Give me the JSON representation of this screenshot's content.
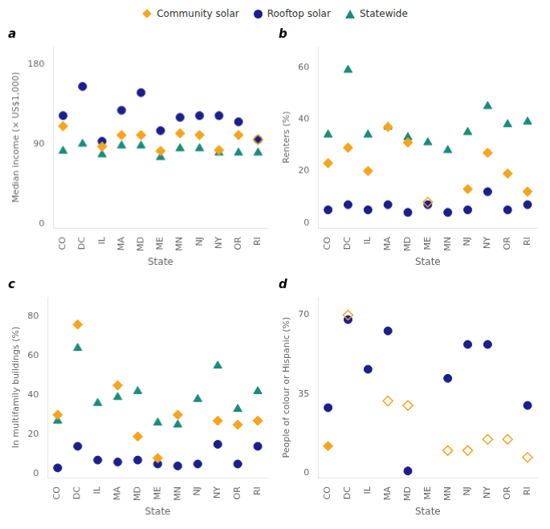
{
  "chart_data": [
    {
      "type": "scatter",
      "title": "a",
      "xlabel": "State",
      "ylabel": "Median income (× US$1,000)",
      "categories": [
        "CO",
        "DC",
        "IL",
        "MA",
        "MD",
        "ME",
        "MN",
        "NJ",
        "NY",
        "OR",
        "RI"
      ],
      "ylim": [
        -5,
        200
      ],
      "yticks": [
        0,
        90,
        180
      ],
      "grid": false,
      "legend": "top",
      "series": [
        {
          "name": "Community solar",
          "color": "#F5A41F",
          "marker": "diamond",
          "values": [
            110,
            null,
            87,
            100,
            100,
            82,
            102,
            100,
            83,
            100,
            95
          ],
          "open": [
            false,
            true,
            false,
            false,
            false,
            false,
            false,
            false,
            false,
            false,
            true
          ]
        },
        {
          "name": "Rooftop solar",
          "color": "#1A1F8C",
          "marker": "circle",
          "values": [
            122,
            155,
            93,
            128,
            148,
            105,
            120,
            122,
            122,
            115,
            95
          ]
        },
        {
          "name": "Statewide",
          "color": "#1A8C7A",
          "marker": "triangle",
          "values": [
            82,
            90,
            78,
            88,
            88,
            75,
            85,
            85,
            80,
            80,
            80
          ]
        }
      ]
    },
    {
      "type": "scatter",
      "title": "b",
      "xlabel": "State",
      "ylabel": "Renters (%)",
      "categories": [
        "CO",
        "DC",
        "IL",
        "MA",
        "MD",
        "ME",
        "MN",
        "NJ",
        "NY",
        "OR",
        "RI"
      ],
      "ylim": [
        -2,
        68
      ],
      "yticks": [
        0,
        20,
        40,
        60
      ],
      "grid": false,
      "series": [
        {
          "name": "Community solar",
          "color": "#F5A41F",
          "marker": "diamond",
          "values": [
            23,
            29,
            20,
            37,
            31,
            8,
            null,
            13,
            27,
            19,
            12
          ],
          "open": [
            false,
            false,
            false,
            false,
            false,
            true,
            false,
            false,
            false,
            false,
            false
          ]
        },
        {
          "name": "Rooftop solar",
          "color": "#1A1F8C",
          "marker": "circle",
          "values": [
            5,
            7,
            5,
            7,
            4,
            7,
            4,
            5,
            12,
            5,
            7
          ]
        },
        {
          "name": "Statewide",
          "color": "#1A8C7A",
          "marker": "triangle",
          "values": [
            34,
            59,
            34,
            37,
            33,
            31,
            28,
            35,
            45,
            38,
            39
          ]
        }
      ]
    },
    {
      "type": "scatter",
      "title": "c",
      "xlabel": "State",
      "ylabel": "In multifamily buildings (%)",
      "categories": [
        "CO",
        "DC",
        "IL",
        "MA",
        "MD",
        "ME",
        "MN",
        "NJ",
        "NY",
        "OR",
        "RI"
      ],
      "ylim": [
        -2,
        90
      ],
      "yticks": [
        0,
        20,
        40,
        60,
        80
      ],
      "grid": false,
      "series": [
        {
          "name": "Community solar",
          "color": "#F5A41F",
          "marker": "diamond",
          "values": [
            30,
            76,
            null,
            45,
            19,
            8,
            30,
            null,
            27,
            25,
            27
          ],
          "open": [
            false,
            false,
            false,
            false,
            false,
            false,
            false,
            true,
            false,
            false,
            false
          ]
        },
        {
          "name": "Rooftop solar",
          "color": "#1A1F8C",
          "marker": "circle",
          "values": [
            3,
            14,
            7,
            6,
            7,
            5,
            4,
            5,
            15,
            5,
            14
          ]
        },
        {
          "name": "Statewide",
          "color": "#1A8C7A",
          "marker": "triangle",
          "values": [
            27,
            64,
            36,
            39,
            42,
            26,
            25,
            38,
            55,
            33,
            42
          ]
        }
      ]
    },
    {
      "type": "scatter",
      "title": "d",
      "xlabel": "State",
      "ylabel": "People of colour or Hispanic (%)",
      "categories": [
        "CO",
        "DC",
        "IL",
        "MA",
        "MD",
        "ME",
        "MN",
        "NJ",
        "NY",
        "OR",
        "RI"
      ],
      "ylim": [
        -2,
        78
      ],
      "yticks": [
        0,
        35,
        70
      ],
      "grid": false,
      "series": [
        {
          "name": "Community solar",
          "color": "#F5A41F",
          "marker": "diamond",
          "values": [
            12,
            70,
            null,
            32,
            30,
            null,
            10,
            10,
            15,
            15,
            7
          ],
          "open": [
            false,
            true,
            false,
            true,
            true,
            false,
            true,
            true,
            true,
            true,
            true
          ]
        },
        {
          "name": "Rooftop solar",
          "color": "#1A1F8C",
          "marker": "circle",
          "values": [
            29,
            68,
            46,
            63,
            1,
            null,
            42,
            57,
            57,
            null,
            30
          ]
        },
        {
          "name": "Statewide",
          "color": "#1A8C7A",
          "marker": "triangle",
          "values": [
            null,
            null,
            null,
            null,
            null,
            null,
            null,
            null,
            null,
            null,
            null
          ]
        }
      ]
    }
  ]
}
